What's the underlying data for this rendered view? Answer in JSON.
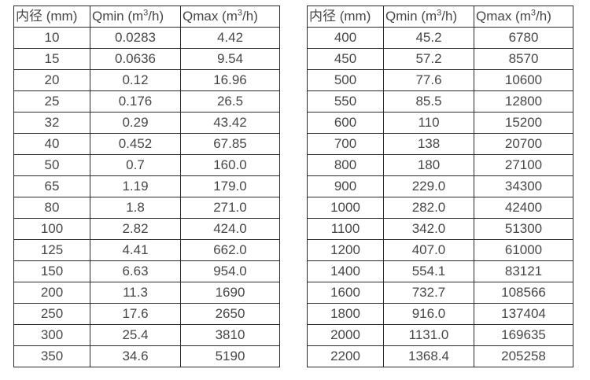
{
  "colors": {
    "background": "#ffffff",
    "border": "#2b2b2b",
    "text": "#474747"
  },
  "tables": {
    "small_diameters": {
      "headers": [
        "内径 (mm)",
        "Qmin (m³/h)",
        "Qmax (m³/h)"
      ],
      "rows": [
        [
          "10",
          "0.0283",
          "4.42"
        ],
        [
          "15",
          "0.0636",
          "9.54"
        ],
        [
          "20",
          "0.12",
          "16.96"
        ],
        [
          "25",
          "0.176",
          "26.5"
        ],
        [
          "32",
          "0.29",
          "43.42"
        ],
        [
          "40",
          "0.452",
          "67.85"
        ],
        [
          "50",
          "0.7",
          "160.0"
        ],
        [
          "65",
          "1.19",
          "179.0"
        ],
        [
          "80",
          "1.8",
          "271.0"
        ],
        [
          "100",
          "2.82",
          "424.0"
        ],
        [
          "125",
          "4.41",
          "662.0"
        ],
        [
          "150",
          "6.63",
          "954.0"
        ],
        [
          "200",
          "11.3",
          "1690"
        ],
        [
          "250",
          "17.6",
          "2650"
        ],
        [
          "300",
          "25.4",
          "3810"
        ],
        [
          "350",
          "34.6",
          "5190"
        ]
      ]
    },
    "large_diameters": {
      "headers": [
        "内径 (mm)",
        "Qmin (m³/h)",
        "Qmax (m³/h)"
      ],
      "rows": [
        [
          "400",
          "45.2",
          "6780"
        ],
        [
          "450",
          "57.2",
          "8570"
        ],
        [
          "500",
          "77.6",
          "10600"
        ],
        [
          "550",
          "85.5",
          "12800"
        ],
        [
          "600",
          "110",
          "15200"
        ],
        [
          "700",
          "138",
          "20700"
        ],
        [
          "800",
          "180",
          "27100"
        ],
        [
          "900",
          "229.0",
          "34300"
        ],
        [
          "1000",
          "282.0",
          "42400"
        ],
        [
          "1100",
          "342.0",
          "51300"
        ],
        [
          "1200",
          "407.0",
          "61000"
        ],
        [
          "1400",
          "554.1",
          "83121"
        ],
        [
          "1600",
          "732.7",
          "108566"
        ],
        [
          "1800",
          "916.0",
          "137404"
        ],
        [
          "2000",
          "1131.0",
          "169635"
        ],
        [
          "2200",
          "1368.4",
          "205258"
        ]
      ]
    }
  }
}
